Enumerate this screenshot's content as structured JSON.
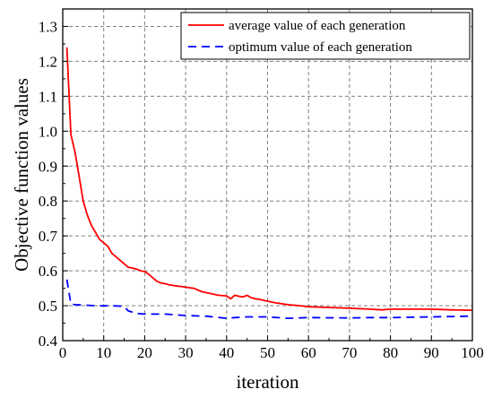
{
  "chart_data": {
    "type": "line",
    "title": "",
    "xlabel": "iteration",
    "ylabel": "Objective function values",
    "xlim": [
      0,
      100
    ],
    "ylim": [
      0.4,
      1.35
    ],
    "xticks": [
      0,
      10,
      20,
      30,
      40,
      50,
      60,
      70,
      80,
      90,
      100
    ],
    "yticks": [
      0.4,
      0.5,
      0.6,
      0.7,
      0.8,
      0.9,
      1.0,
      1.1,
      1.2,
      1.3
    ],
    "ytick_labels": [
      "0.4",
      "0.5",
      "0.6",
      "0.7",
      "0.8",
      "0.9",
      "1.0",
      "1.1",
      "1.2",
      "1.3"
    ],
    "grid": true,
    "legend_position": "top-right",
    "series": [
      {
        "name": "average value of each generation",
        "color": "#ff0000",
        "style": "solid",
        "x": [
          1,
          2,
          3,
          4,
          5,
          6,
          7,
          8,
          9,
          10,
          11,
          12,
          13,
          14,
          15,
          16,
          17,
          18,
          19,
          20,
          21,
          22,
          23,
          24,
          25,
          26,
          27,
          28,
          29,
          30,
          32,
          34,
          36,
          38,
          40,
          41,
          42,
          43,
          44,
          45,
          46,
          47,
          48,
          50,
          52,
          55,
          58,
          60,
          65,
          70,
          75,
          78,
          80,
          85,
          90,
          95,
          100
        ],
        "y": [
          1.24,
          0.99,
          0.94,
          0.87,
          0.8,
          0.76,
          0.73,
          0.71,
          0.69,
          0.68,
          0.67,
          0.65,
          0.64,
          0.63,
          0.62,
          0.61,
          0.608,
          0.605,
          0.6,
          0.598,
          0.59,
          0.58,
          0.57,
          0.565,
          0.563,
          0.56,
          0.558,
          0.556,
          0.555,
          0.553,
          0.55,
          0.54,
          0.535,
          0.53,
          0.528,
          0.52,
          0.53,
          0.527,
          0.525,
          0.53,
          0.523,
          0.52,
          0.518,
          0.513,
          0.508,
          0.503,
          0.5,
          0.497,
          0.495,
          0.493,
          0.49,
          0.488,
          0.49,
          0.49,
          0.49,
          0.488,
          0.487
        ]
      },
      {
        "name": "optimum value of each generation",
        "color": "#0000ff",
        "style": "dashed",
        "x": [
          1,
          2,
          3,
          5,
          8,
          10,
          12,
          15,
          16,
          18,
          20,
          25,
          30,
          35,
          40,
          42,
          45,
          50,
          55,
          60,
          70,
          75,
          80,
          85,
          90,
          95,
          100
        ],
        "y": [
          0.575,
          0.505,
          0.503,
          0.502,
          0.5,
          0.5,
          0.5,
          0.498,
          0.485,
          0.478,
          0.476,
          0.476,
          0.472,
          0.47,
          0.464,
          0.466,
          0.468,
          0.468,
          0.464,
          0.466,
          0.465,
          0.466,
          0.466,
          0.467,
          0.468,
          0.469,
          0.47
        ]
      }
    ]
  }
}
